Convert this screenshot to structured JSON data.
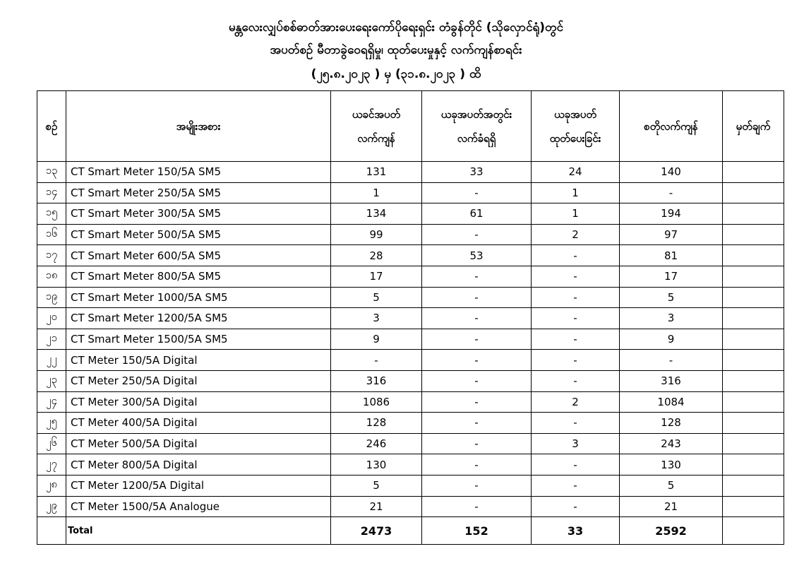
{
  "title": {
    "line1": "မန္တလေးလျှပ်စစ်ဓာတ်အားပေးရေးကော်ပိုရေးရှင်း တံခွန်တိုင် (သိုလှောင်ရုံ)တွင်",
    "line2": "အပတ်စဉ် မီတာခွဲဝေရရှိမှု၊ ထုတ်ပေးမှုနှင့် လက်ကျန်စာရင်း",
    "line3": "(၂၅.၈.၂၀၂၃ ) မှ (၃၁.၈.၂၀၂၃ ) ထိ"
  },
  "headers": [
    "စဉ်",
    "အမျိုးအစား",
    "ယခင်အပတ် လက်ကျန်",
    "ယခုအပတ်အတွင်း လက်ခံရရှိ",
    "ယခုအပတ် ထုတ်ပေးခြင်း",
    "စတိုလက်ကျန်",
    "မှတ်ချက်"
  ],
  "rows": [
    [
      "၁၃",
      "CT Smart Meter 150/5A SM5",
      "131",
      "33",
      "24",
      "140",
      ""
    ],
    [
      "၁၄",
      "CT Smart Meter 250/5A SM5",
      "1",
      "-",
      "1",
      "-",
      ""
    ],
    [
      "၁၅",
      "CT Smart Meter 300/5A SM5",
      "134",
      "61",
      "1",
      "194",
      ""
    ],
    [
      "၁၆",
      "CT Smart Meter 500/5A SM5",
      "99",
      "-",
      "2",
      "97",
      ""
    ],
    [
      "၁၇",
      "CT Smart Meter 600/5A SM5",
      "28",
      "53",
      "-",
      "81",
      ""
    ],
    [
      "၁၈",
      "CT Smart Meter 800/5A SM5",
      "17",
      "-",
      "-",
      "17",
      ""
    ],
    [
      "၁၉",
      "CT Smart Meter 1000/5A SM5",
      "5",
      "-",
      "-",
      "5",
      ""
    ],
    [
      "၂၀",
      "CT Smart Meter 1200/5A SM5",
      "3",
      "-",
      "-",
      "3",
      ""
    ],
    [
      "၂၁",
      "CT Smart Meter 1500/5A SM5",
      "9",
      "-",
      "-",
      "9",
      ""
    ],
    [
      "၂၂",
      "CT Meter 150/5A Digital",
      "-",
      "-",
      "-",
      "-",
      ""
    ],
    [
      "၂၃",
      "CT Meter 250/5A Digital",
      "316",
      "-",
      "-",
      "316",
      ""
    ],
    [
      "၂၄",
      "CT Meter 300/5A Digital",
      "1086",
      "-",
      "2",
      "1084",
      ""
    ],
    [
      "၂၅",
      "CT Meter 400/5A Digital",
      "128",
      "-",
      "-",
      "128",
      ""
    ],
    [
      "၂၆",
      "CT Meter 500/5A Digital",
      "246",
      "-",
      "3",
      "243",
      ""
    ],
    [
      "၂၇",
      "CT Meter 800/5A Digital",
      "130",
      "-",
      "-",
      "130",
      ""
    ],
    [
      "၂၈",
      "CT Meter 1200/5A Digital",
      "5",
      "-",
      "-",
      "5",
      ""
    ],
    [
      "၂၉",
      "CT Meter 1500/5A Analogue",
      "21",
      "-",
      "-",
      "21",
      ""
    ]
  ],
  "total": {
    "label": "Total",
    "prev": "2473",
    "received": "152",
    "issued": "33",
    "stock": "2592"
  }
}
